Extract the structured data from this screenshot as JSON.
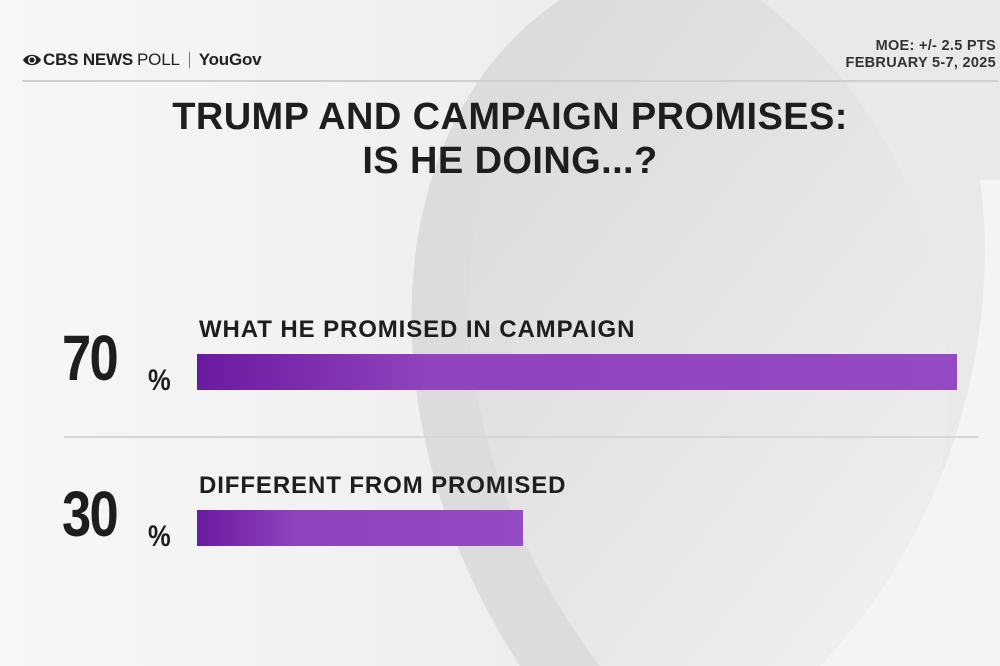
{
  "header": {
    "brand_cbs": "CBS NEWS",
    "brand_poll": "POLL",
    "brand_partner": "YouGov",
    "moe": "MOE: +/- 2.5 PTS",
    "dates": "FEBRUARY 5-7, 2025"
  },
  "chart_data": {
    "type": "bar",
    "orientation": "horizontal",
    "title_line1": "TRUMP AND CAMPAIGN PROMISES:",
    "title_line2": "IS HE DOING...?",
    "categories": [
      "WHAT HE PROMISED IN CAMPAIGN",
      "DIFFERENT FROM PROMISED"
    ],
    "values": [
      70,
      30
    ],
    "value_labels": [
      "70",
      "30"
    ],
    "unit": "%",
    "xlim": [
      0,
      70
    ],
    "bar_color": "#944ac2",
    "grid": false
  }
}
